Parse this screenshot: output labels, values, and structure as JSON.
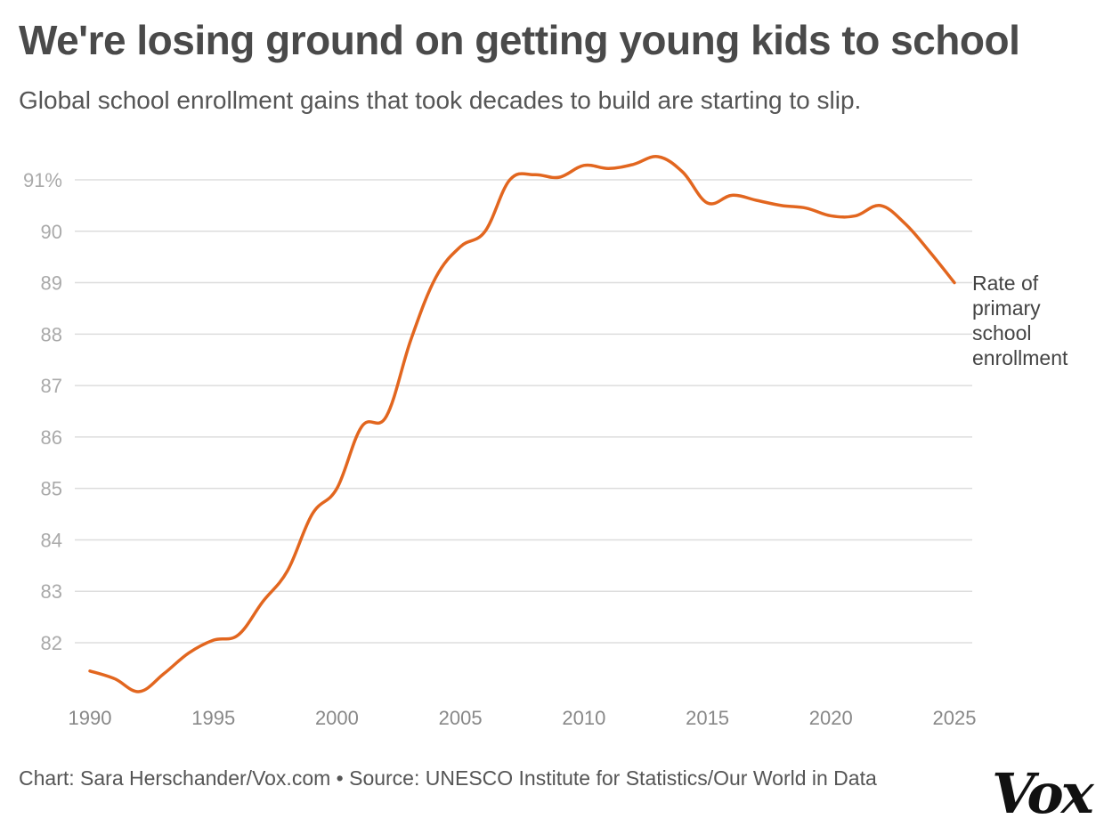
{
  "header": {
    "title": "We're losing ground on getting young kids to school",
    "subtitle": "Global school enrollment gains that took decades to build are starting to slip."
  },
  "footer": {
    "credit": "Chart: Sara Herschander/Vox.com • Source: UNESCO Institute for Statistics/Our World in Data",
    "logo_text": "Vox"
  },
  "colors": {
    "line": "#e2661f",
    "grid": "#dddddd",
    "text": "#444444"
  },
  "chart_data": {
    "type": "line",
    "title": "We're losing ground on getting young kids to school",
    "subtitle": "Global school enrollment gains that took decades to build are starting to slip.",
    "xlabel": "",
    "ylabel": "",
    "xlim": [
      1990,
      2025
    ],
    "ylim": [
      81,
      91.5
    ],
    "x_ticks": [
      1990,
      1995,
      2000,
      2005,
      2010,
      2015,
      2020,
      2025
    ],
    "y_ticks": [
      {
        "value": 82,
        "label": "82"
      },
      {
        "value": 83,
        "label": "83"
      },
      {
        "value": 84,
        "label": "84"
      },
      {
        "value": 85,
        "label": "85"
      },
      {
        "value": 86,
        "label": "86"
      },
      {
        "value": 87,
        "label": "87"
      },
      {
        "value": 88,
        "label": "88"
      },
      {
        "value": 89,
        "label": "89"
      },
      {
        "value": 90,
        "label": "90"
      },
      {
        "value": 91,
        "label": "91%"
      }
    ],
    "grid": true,
    "series": [
      {
        "name": "Rate of primary school enrollment",
        "label_lines": [
          "Rate of",
          "primary",
          "school",
          "enrollment"
        ],
        "x": [
          1990,
          1991,
          1992,
          1993,
          1994,
          1995,
          1996,
          1997,
          1998,
          1999,
          2000,
          2001,
          2002,
          2003,
          2004,
          2005,
          2006,
          2007,
          2008,
          2009,
          2010,
          2011,
          2012,
          2013,
          2014,
          2015,
          2016,
          2017,
          2018,
          2019,
          2020,
          2021,
          2022,
          2023,
          2024,
          2025
        ],
        "y": [
          81.45,
          81.3,
          81.05,
          81.4,
          81.8,
          82.05,
          82.15,
          82.8,
          83.4,
          84.5,
          85.0,
          86.2,
          86.4,
          87.9,
          89.1,
          89.7,
          90.0,
          91.0,
          91.1,
          91.05,
          91.28,
          91.22,
          91.3,
          91.45,
          91.15,
          90.55,
          90.7,
          90.6,
          90.5,
          90.45,
          90.3,
          90.3,
          90.5,
          90.15,
          89.6,
          89.0
        ]
      }
    ]
  }
}
